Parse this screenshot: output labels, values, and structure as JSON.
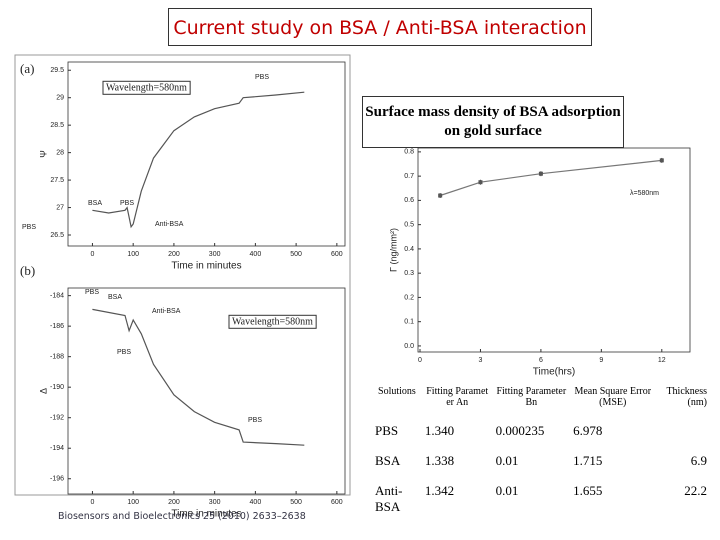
{
  "title": "Current study on BSA / Anti-BSA interaction",
  "chart_data": [
    {
      "type": "line",
      "panel_label": "(a)",
      "ylabel": "Ψ",
      "xlabel": "Time in minutes",
      "x": [
        0,
        40,
        80,
        85,
        95,
        100,
        120,
        150,
        200,
        250,
        300,
        360,
        370,
        450,
        520
      ],
      "values": [
        26.95,
        26.9,
        26.95,
        27.0,
        26.65,
        26.7,
        27.3,
        27.9,
        28.4,
        28.65,
        28.8,
        28.9,
        29.0,
        29.05,
        29.1
      ],
      "color": "#555555",
      "xlim": [
        -60,
        620
      ],
      "ylim": [
        26.3,
        29.65
      ],
      "xticks": [
        0,
        100,
        200,
        300,
        400,
        500,
        600
      ],
      "yticks": [
        26.5,
        27.0,
        27.5,
        28.0,
        28.5,
        29.0,
        29.5
      ],
      "annotations": [
        "Wavelength=580nm",
        "PBS",
        "BSA",
        "PBS",
        "Anti-BSA",
        "PBS"
      ]
    },
    {
      "type": "line",
      "panel_label": "(b)",
      "ylabel": "Δ",
      "xlabel": "Time in minutes",
      "x": [
        0,
        80,
        90,
        100,
        120,
        150,
        200,
        250,
        300,
        360,
        370,
        450,
        520
      ],
      "values": [
        -184.9,
        -185.3,
        -186.3,
        -185.6,
        -186.5,
        -188.5,
        -190.5,
        -191.6,
        -192.3,
        -192.8,
        -193.6,
        -193.7,
        -193.8
      ],
      "color": "#555555",
      "xlim": [
        -60,
        620
      ],
      "ylim": [
        -197.0,
        -183.5
      ],
      "xticks": [
        0,
        100,
        200,
        300,
        400,
        500,
        600
      ],
      "yticks": [
        -184,
        -186,
        -188,
        -190,
        -192,
        -194,
        -196
      ],
      "annotations": [
        "PBS",
        "BSA",
        "Anti-BSA",
        "Wavelength=580nm",
        "PBS",
        "PBS"
      ]
    },
    {
      "type": "line",
      "title": "Surface mass density of BSA adsorption on gold surface",
      "ylabel": "Γ (ng/mm²)",
      "xlabel": "Time(hrs)",
      "x": [
        1,
        3,
        6,
        12
      ],
      "values": [
        0.62,
        0.675,
        0.71,
        0.765
      ],
      "errors": [
        0.01,
        0.01,
        0.01,
        0.01
      ],
      "markers": true,
      "color": "#777777",
      "xlim": [
        -0.1,
        13.4
      ],
      "ylim": [
        -0.025,
        0.816
      ],
      "xticks": [
        0,
        3,
        6,
        9,
        12
      ],
      "yticks": [
        {
          "value": 0,
          "label": "0.0"
        },
        0.1,
        0.2,
        0.3,
        0.4,
        0.5,
        0.6,
        0.7,
        0.8
      ],
      "annotations": [
        "λ=580nm"
      ]
    }
  ],
  "table": {
    "header": [
      "Solutions",
      "Fitting Parameter An",
      "Fitting Parameter Bn",
      "Mean Square Error (MSE)",
      "Thickness (nm)"
    ],
    "rows": [
      [
        "PBS",
        "1.340",
        "0.000235",
        "6.978",
        null
      ],
      [
        "BSA",
        "1.338",
        "0.01",
        "1.715",
        "6.9"
      ],
      [
        "Anti-BSA",
        "1.342",
        "0.01",
        "1.655",
        "22.2"
      ]
    ]
  },
  "citation": "Biosensors and Bioelectronics 25 (2010) 2633–2638"
}
